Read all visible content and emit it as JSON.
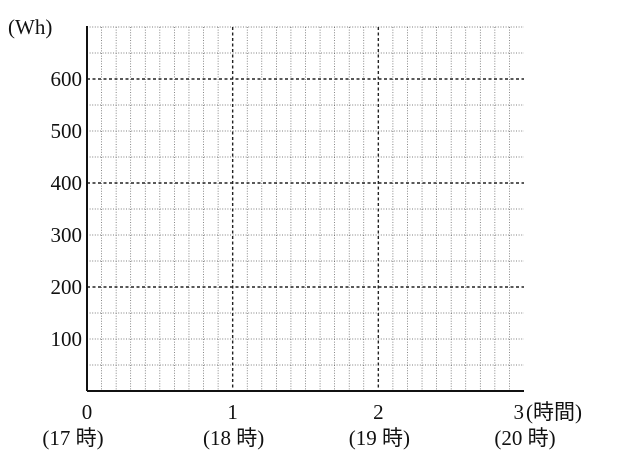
{
  "chart_data": {
    "type": "line",
    "title": "",
    "ylabel": "(Wh)",
    "xlabel": "",
    "x_unit": "(時間)",
    "xlim": [
      0,
      3
    ],
    "ylim": [
      0,
      700
    ],
    "x_ticks": [
      {
        "value": 0,
        "label": "0",
        "sublabel": "(17 時)"
      },
      {
        "value": 1,
        "label": "1",
        "sublabel": "(18 時)"
      },
      {
        "value": 2,
        "label": "2",
        "sublabel": "(19 時)"
      },
      {
        "value": 3,
        "label": "3",
        "sublabel": "(20 時)"
      }
    ],
    "y_ticks": [
      {
        "value": 100,
        "label": "100"
      },
      {
        "value": 200,
        "label": "200"
      },
      {
        "value": 300,
        "label": "300"
      },
      {
        "value": 400,
        "label": "400"
      },
      {
        "value": 500,
        "label": "500"
      },
      {
        "value": 600,
        "label": "600"
      }
    ],
    "minor_x_step": 0.1,
    "minor_y_step": 50,
    "major_x_step": 1,
    "major_y_step": 200,
    "grid": true,
    "series": []
  }
}
